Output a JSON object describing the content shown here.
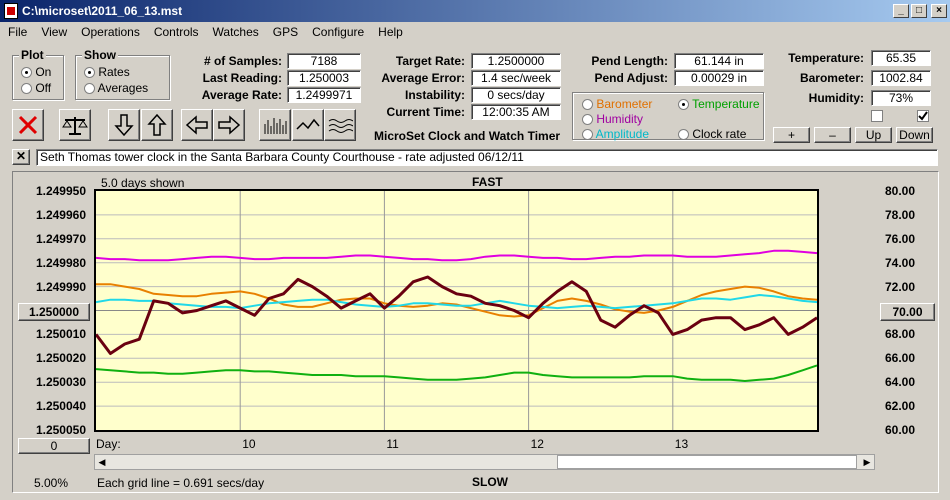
{
  "window": {
    "title": "C:\\microset\\2011_06_13.mst"
  },
  "menu": [
    "File",
    "View",
    "Operations",
    "Controls",
    "Watches",
    "GPS",
    "Configure",
    "Help"
  ],
  "plot_group": {
    "label": "Plot",
    "options": [
      "On",
      "Off"
    ],
    "selected": "On"
  },
  "show_group": {
    "label": "Show",
    "options": [
      "Rates",
      "Averages"
    ],
    "selected": "Rates"
  },
  "stats": {
    "samples_label": "# of Samples:",
    "samples": "7188",
    "last_label": "Last Reading:",
    "last": "1.250003",
    "avg_label": "Average Rate:",
    "avg": "1.2499971",
    "target_label": "Target Rate:",
    "target": "1.2500000",
    "avgerr_label": "Average Error:",
    "avgerr": "1.4 sec/week",
    "instab_label": "Instability:",
    "instab": "0 secs/day",
    "time_label": "Current Time:",
    "time": "12:00:35 AM",
    "pendlen_label": "Pend Length:",
    "pendlen": "61.144 in",
    "pendadj_label": "Pend Adjust:",
    "pendadj": "0.00029 in",
    "temp_label": "Temperature:",
    "temp": "65.35",
    "baro_label": "Barometer:",
    "baro": "1002.84",
    "hum_label": "Humidity:",
    "hum": "73%"
  },
  "app_caption": "MicroSet Clock and Watch Timer",
  "sensors": [
    {
      "name": "Barometer",
      "color": "#e07000",
      "selected": false
    },
    {
      "name": "Temperature",
      "color": "#00a000",
      "selected": true
    },
    {
      "name": "Humidity",
      "color": "#a000a0",
      "selected": false
    },
    {
      "name": "Amplitude",
      "color": "#00b8c8",
      "selected": false
    },
    {
      "name": "Clock rate",
      "color": "#000000",
      "selected": false
    }
  ],
  "scale_buttons": [
    "+",
    "–",
    "Up",
    "Down"
  ],
  "note": "Seth Thomas tower clock in the Santa Barbara County Courthouse - rate adjusted 06/12/11",
  "plot_header": {
    "days_shown": "5.0 days shown",
    "top": "FAST",
    "bottom": "SLOW",
    "grid": "Each grid line = 0.691 secs/day",
    "pct": "5.00%"
  },
  "left_axis": [
    "1.249950",
    "1.249960",
    "1.249970",
    "1.249980",
    "1.249990",
    "1.250000",
    "1.250010",
    "1.250020",
    "1.250030",
    "1.250040",
    "1.250050"
  ],
  "left_box": "1.250000",
  "left_zero": "0",
  "right_axis": [
    "80.00",
    "78.00",
    "76.00",
    "74.00",
    "72.00",
    "70.00",
    "68.00",
    "66.00",
    "64.00",
    "62.00",
    "60.00"
  ],
  "right_box": "70.00",
  "x_labels": [
    "Day:",
    "10",
    "11",
    "12",
    "13"
  ],
  "colors": {
    "rate": "#6a0010",
    "humidity": "#e000e0",
    "temperature": "#10b010",
    "barometer": "#e88000",
    "amplitude": "#20d8e8",
    "plotbg": "#ffffcc"
  },
  "chart_data": {
    "type": "line",
    "x": [
      9.0,
      9.1,
      9.2,
      9.3,
      9.4,
      9.5,
      9.6,
      9.7,
      9.8,
      9.9,
      10.0,
      10.1,
      10.2,
      10.3,
      10.4,
      10.5,
      10.6,
      10.7,
      10.8,
      10.9,
      11.0,
      11.1,
      11.2,
      11.3,
      11.4,
      11.5,
      11.6,
      11.7,
      11.8,
      11.9,
      12.0,
      12.1,
      12.2,
      12.3,
      12.4,
      12.5,
      12.6,
      12.7,
      12.8,
      12.9,
      13.0,
      13.1,
      13.2,
      13.3,
      13.4,
      13.5,
      13.6,
      13.7,
      13.8,
      13.9,
      14.0
    ],
    "series": [
      {
        "name": "Clock rate",
        "axis": "left",
        "values": [
          1.25001,
          1.250018,
          1.250014,
          1.250012,
          1.249996,
          1.249997,
          1.250001,
          1.25,
          1.249998,
          1.249996,
          1.249999,
          1.250002,
          1.249995,
          1.249993,
          1.249987,
          1.24999,
          1.249994,
          1.249999,
          1.249996,
          1.249993,
          1.249999,
          1.249994,
          1.249988,
          1.249986,
          1.24999,
          1.249993,
          1.249994,
          1.249997,
          1.249998,
          1.25,
          1.250003,
          1.249997,
          1.249992,
          1.249988,
          1.249992,
          1.250004,
          1.250007,
          1.250002,
          1.249998,
          1.250001,
          1.25001,
          1.250008,
          1.250004,
          1.250003,
          1.250003,
          1.250008,
          1.250006,
          1.250003,
          1.25001,
          1.250007,
          1.250003
        ]
      },
      {
        "name": "Humidity",
        "axis": "right",
        "values": [
          74.4,
          74.3,
          74.3,
          74.2,
          74.2,
          74.2,
          74.3,
          74.4,
          74.5,
          74.5,
          74.4,
          74.3,
          74.3,
          74.4,
          74.4,
          74.4,
          74.4,
          74.5,
          74.6,
          74.6,
          74.5,
          74.4,
          74.3,
          74.3,
          74.2,
          74.2,
          74.3,
          74.5,
          74.6,
          74.6,
          74.5,
          74.4,
          74.4,
          74.3,
          74.3,
          74.4,
          74.5,
          74.5,
          74.6,
          74.6,
          74.6,
          74.5,
          74.5,
          74.5,
          74.6,
          74.7,
          74.8,
          75.0,
          75.0,
          74.9,
          74.8
        ]
      },
      {
        "name": "Temperature",
        "axis": "right",
        "values": [
          65.1,
          65.0,
          64.9,
          64.8,
          64.8,
          64.7,
          64.7,
          64.8,
          64.9,
          65.0,
          65.0,
          64.9,
          64.9,
          64.8,
          64.7,
          64.6,
          64.6,
          64.6,
          64.5,
          64.5,
          64.5,
          64.4,
          64.3,
          64.2,
          64.2,
          64.2,
          64.3,
          64.4,
          64.6,
          64.8,
          64.8,
          64.6,
          64.5,
          64.4,
          64.4,
          64.4,
          64.4,
          64.4,
          64.5,
          64.5,
          64.5,
          64.3,
          64.2,
          64.2,
          64.2,
          64.1,
          64.2,
          64.3,
          64.6,
          65.0,
          65.4
        ]
      },
      {
        "name": "Barometer",
        "axis": "right",
        "values": [
          72.2,
          72.2,
          72.0,
          71.8,
          71.4,
          71.3,
          71.2,
          71.2,
          71.4,
          71.5,
          71.6,
          71.4,
          71.0,
          70.5,
          70.3,
          70.3,
          70.6,
          70.9,
          71.0,
          71.0,
          70.6,
          70.4,
          70.3,
          70.4,
          70.6,
          70.5,
          70.2,
          69.9,
          69.6,
          69.5,
          69.6,
          70.2,
          70.8,
          71.0,
          70.8,
          70.5,
          70.1,
          69.9,
          69.8,
          70.0,
          70.3,
          70.8,
          71.3,
          71.6,
          71.8,
          72.0,
          71.9,
          71.6,
          71.2,
          71.0,
          70.9
        ]
      },
      {
        "name": "Amplitude",
        "axis": "right",
        "values": [
          70.7,
          70.9,
          70.9,
          70.8,
          70.8,
          70.6,
          70.5,
          70.4,
          70.3,
          70.3,
          70.2,
          70.4,
          70.6,
          70.7,
          70.8,
          70.9,
          70.9,
          70.7,
          70.5,
          70.4,
          70.3,
          70.4,
          70.6,
          70.6,
          70.5,
          70.4,
          70.4,
          70.6,
          70.8,
          70.6,
          70.4,
          70.3,
          70.2,
          70.3,
          70.4,
          70.3,
          70.2,
          70.3,
          70.4,
          70.5,
          70.6,
          70.8,
          71.0,
          71.0,
          70.9,
          71.1,
          71.3,
          71.2,
          71.0,
          70.8,
          70.7
        ]
      }
    ],
    "left_ylim": [
      1.25005,
      1.24995
    ],
    "right_ylim": [
      60,
      80
    ],
    "xlim": [
      9.0,
      14.0
    ],
    "grid": true
  }
}
